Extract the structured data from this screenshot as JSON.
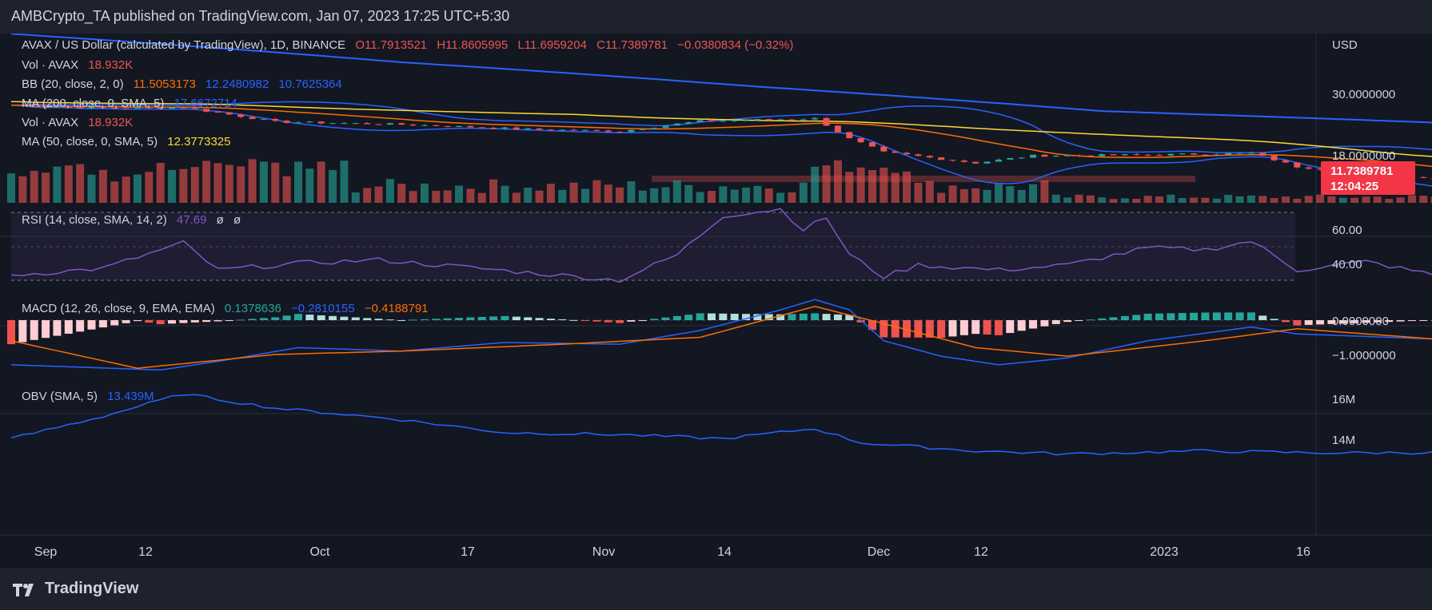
{
  "publisher": "AMBCrypto_TA published on TradingView.com, Jan 07, 2023 17:25 UTC+5:30",
  "footer_brand": "TradingView",
  "colors": {
    "bg": "#131722",
    "outer_bg": "#1e222d",
    "up": "#26a69a",
    "down": "#ef5350",
    "ma200": "#2962ff",
    "ma50": "#fdd835",
    "bb_basis": "#ff6d00",
    "bb_band": "#2962ff",
    "rsi": "#7e57c2",
    "macd": "#2962ff",
    "signal": "#ff6d00",
    "obv": "#2962ff"
  },
  "legend": {
    "symbol": "AVAX / US Dollar (calculated by TradingView), 1D, BINANCE",
    "ohlc_o": "O11.7913521",
    "ohlc_h": "H11.8605995",
    "ohlc_l": "L11.6959204",
    "ohlc_c": "C11.7389781",
    "ohlc_chg": "−0.0380834 (−0.32%)",
    "vol1_label": "Vol · AVAX",
    "vol1_value": "18.932K",
    "bb_label": "BB (20, close, 2, 0)",
    "bb_v1": "11.5053173",
    "bb_v2": "12.2480982",
    "bb_v3": "10.7625364",
    "ma200_label": "MA (200, close, 0, SMA, 5)",
    "ma200_value": "17.6672714",
    "vol2_label": "Vol · AVAX",
    "vol2_value": "18.932K",
    "ma50_label": "MA (50, close, 0, SMA, 5)",
    "ma50_value": "12.3773325",
    "rsi_label": "RSI (14, close, SMA, 14, 2)",
    "rsi_value": "47.69",
    "rsi_extra1": "ø",
    "rsi_extra2": "ø",
    "macd_label": "MACD (12, 26, close, 9, EMA, EMA)",
    "macd_v1": "0.1378636",
    "macd_v2": "−0.2810155",
    "macd_v3": "−0.4188791",
    "obv_label": "OBV (SMA, 5)",
    "obv_value": "13.439M"
  },
  "price_badge": {
    "price": "11.7389781",
    "countdown": "12:04:25"
  },
  "price_axis": {
    "currency": "USD",
    "ticks": [
      "30.0000000",
      "18.0000000"
    ]
  },
  "rsi_axis": {
    "ticks": [
      "60.00",
      "40.00"
    ]
  },
  "macd_axis": {
    "ticks": [
      "0.0000000",
      "−1.0000000"
    ]
  },
  "obv_axis": {
    "ticks": [
      "16M",
      "14M"
    ]
  },
  "time_axis": {
    "ticks": [
      "Sep",
      "12",
      "Oct",
      "17",
      "Nov",
      "14",
      "Dec",
      "12",
      "2023",
      "16"
    ]
  },
  "chart_data": {
    "type": "candlestick",
    "symbol": "AVAX / US Dollar",
    "interval": "1D",
    "price_scale": "log",
    "price_anchors": [
      {
        "date": "2022-08-28",
        "close": 21.0
      },
      {
        "date": "2022-09-05",
        "close": 20.5
      },
      {
        "date": "2022-09-12",
        "close": 20.6
      },
      {
        "date": "2022-09-20",
        "close": 18.3
      },
      {
        "date": "2022-10-01",
        "close": 17.9
      },
      {
        "date": "2022-10-12",
        "close": 17.2
      },
      {
        "date": "2022-10-20",
        "close": 16.9
      },
      {
        "date": "2022-10-27",
        "close": 18.4
      },
      {
        "date": "2022-11-01",
        "close": 18.6
      },
      {
        "date": "2022-11-06",
        "close": 18.8
      },
      {
        "date": "2022-11-09",
        "close": 15.9
      },
      {
        "date": "2022-11-12",
        "close": 14.2
      },
      {
        "date": "2022-11-20",
        "close": 13.0
      },
      {
        "date": "2022-11-25",
        "close": 13.8
      },
      {
        "date": "2022-12-05",
        "close": 13.9
      },
      {
        "date": "2022-12-14",
        "close": 14.1
      },
      {
        "date": "2022-12-18",
        "close": 12.6
      },
      {
        "date": "2022-12-30",
        "close": 11.4
      },
      {
        "date": "2023-01-04",
        "close": 12.2
      },
      {
        "date": "2023-01-07",
        "close": 11.74
      }
    ],
    "rsi_anchors": [
      {
        "date": "2022-08-28",
        "v": 33
      },
      {
        "date": "2022-09-05",
        "v": 37
      },
      {
        "date": "2022-09-12",
        "v": 52
      },
      {
        "date": "2022-09-15",
        "v": 36
      },
      {
        "date": "2022-09-22",
        "v": 40
      },
      {
        "date": "2022-09-29",
        "v": 42
      },
      {
        "date": "2022-10-06",
        "v": 38
      },
      {
        "date": "2022-10-13",
        "v": 34
      },
      {
        "date": "2022-10-20",
        "v": 30
      },
      {
        "date": "2022-10-25",
        "v": 45
      },
      {
        "date": "2022-10-29",
        "v": 68
      },
      {
        "date": "2022-11-03",
        "v": 72
      },
      {
        "date": "2022-11-05",
        "v": 60
      },
      {
        "date": "2022-11-07",
        "v": 67
      },
      {
        "date": "2022-11-09",
        "v": 45
      },
      {
        "date": "2022-11-12",
        "v": 32
      },
      {
        "date": "2022-11-15",
        "v": 39
      },
      {
        "date": "2022-11-22",
        "v": 36
      },
      {
        "date": "2022-11-28",
        "v": 39
      },
      {
        "date": "2022-12-05",
        "v": 49
      },
      {
        "date": "2022-12-10",
        "v": 48
      },
      {
        "date": "2022-12-14",
        "v": 53
      },
      {
        "date": "2022-12-18",
        "v": 36
      },
      {
        "date": "2022-12-24",
        "v": 41
      },
      {
        "date": "2022-12-30",
        "v": 33
      },
      {
        "date": "2023-01-03",
        "v": 43
      },
      {
        "date": "2023-01-05",
        "v": 51
      },
      {
        "date": "2023-01-07",
        "v": 47.69
      }
    ],
    "rsi_bands": [
      70,
      30
    ],
    "macd_line": [
      {
        "date": "2022-08-28",
        "v": -1.3
      },
      {
        "date": "2022-09-10",
        "v": -1.45
      },
      {
        "date": "2022-09-15",
        "v": -1.2
      },
      {
        "date": "2022-09-22",
        "v": -0.8
      },
      {
        "date": "2022-10-01",
        "v": -0.9
      },
      {
        "date": "2022-10-10",
        "v": -0.65
      },
      {
        "date": "2022-10-20",
        "v": -0.7
      },
      {
        "date": "2022-10-27",
        "v": -0.3
      },
      {
        "date": "2022-11-03",
        "v": 0.3
      },
      {
        "date": "2022-11-06",
        "v": 0.6
      },
      {
        "date": "2022-11-09",
        "v": 0.3
      },
      {
        "date": "2022-11-12",
        "v": -0.6
      },
      {
        "date": "2022-11-17",
        "v": -1.05
      },
      {
        "date": "2022-11-22",
        "v": -1.3
      },
      {
        "date": "2022-11-28",
        "v": -1.1
      },
      {
        "date": "2022-12-05",
        "v": -0.6
      },
      {
        "date": "2022-12-14",
        "v": -0.2
      },
      {
        "date": "2022-12-18",
        "v": -0.4
      },
      {
        "date": "2022-12-30",
        "v": -0.55
      },
      {
        "date": "2023-01-07",
        "v": -0.28
      }
    ],
    "signal_line": [
      {
        "date": "2022-08-28",
        "v": -0.6
      },
      {
        "date": "2022-09-08",
        "v": -1.4
      },
      {
        "date": "2022-09-20",
        "v": -1.0
      },
      {
        "date": "2022-10-01",
        "v": -0.9
      },
      {
        "date": "2022-10-15",
        "v": -0.7
      },
      {
        "date": "2022-10-27",
        "v": -0.5
      },
      {
        "date": "2022-11-06",
        "v": 0.4
      },
      {
        "date": "2022-11-12",
        "v": -0.1
      },
      {
        "date": "2022-11-20",
        "v": -0.8
      },
      {
        "date": "2022-11-28",
        "v": -1.05
      },
      {
        "date": "2022-12-10",
        "v": -0.6
      },
      {
        "date": "2022-12-18",
        "v": -0.25
      },
      {
        "date": "2022-12-30",
        "v": -0.55
      },
      {
        "date": "2023-01-07",
        "v": -0.42
      }
    ],
    "obv_anchors": [
      {
        "date": "2022-08-28",
        "v": 14.1
      },
      {
        "date": "2022-09-05",
        "v": 15.2
      },
      {
        "date": "2022-09-12",
        "v": 16.3
      },
      {
        "date": "2022-09-20",
        "v": 15.6
      },
      {
        "date": "2022-09-30",
        "v": 15.1
      },
      {
        "date": "2022-10-10",
        "v": 14.4
      },
      {
        "date": "2022-10-20",
        "v": 14.3
      },
      {
        "date": "2022-10-29",
        "v": 14.1
      },
      {
        "date": "2022-11-06",
        "v": 14.6
      },
      {
        "date": "2022-11-10",
        "v": 13.9
      },
      {
        "date": "2022-11-15",
        "v": 13.7
      },
      {
        "date": "2022-11-20",
        "v": 13.5
      },
      {
        "date": "2022-11-28",
        "v": 13.35
      },
      {
        "date": "2022-12-10",
        "v": 13.5
      },
      {
        "date": "2022-12-20",
        "v": 13.4
      },
      {
        "date": "2023-01-07",
        "v": 13.44
      }
    ],
    "ma200_anchors": [
      {
        "date": "2022-08-28",
        "v": 38
      },
      {
        "date": "2022-10-01",
        "v": 30
      },
      {
        "date": "2022-11-01",
        "v": 24.5
      },
      {
        "date": "2022-12-01",
        "v": 20.0
      },
      {
        "date": "2023-01-07",
        "v": 17.67
      }
    ]
  }
}
